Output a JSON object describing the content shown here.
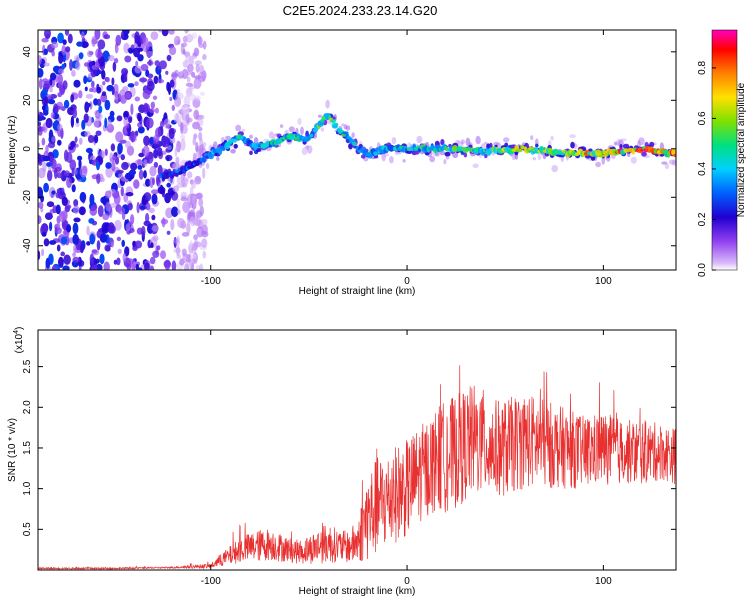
{
  "title": "C2E5.2024.233.23.14.G20",
  "chart_data": [
    {
      "type": "heatmap",
      "xlabel": "Height of straight line (km)",
      "ylabel": "Frequency (Hz)",
      "xlim": [
        -188,
        137
      ],
      "ylim": [
        -50,
        49
      ],
      "x_ticks": [
        -100,
        0,
        100
      ],
      "y_ticks": [
        -40,
        -20,
        0,
        20,
        40
      ],
      "colorbar": {
        "label": "Normalized spectral amplitude",
        "range": [
          0,
          0.95
        ],
        "ticks": [
          "0.0",
          "0.2",
          "0.4",
          "0.6",
          "0.8"
        ],
        "tick_values": [
          0,
          0.2,
          0.4,
          0.6,
          0.8
        ],
        "colors": [
          "#ffffff",
          "#b070f0",
          "#4000d0",
          "#0050ff",
          "#00d0ff",
          "#00e070",
          "#a0e000",
          "#ffe000",
          "#ff8000",
          "#ff0000",
          "#ff00c0"
        ]
      },
      "ridge": {
        "x": [
          -125,
          -115,
          -105,
          -95,
          -85,
          -78,
          -70,
          -60,
          -50,
          -45,
          -40,
          -35,
          -30,
          -25,
          -20,
          -10,
          0,
          20,
          40,
          60,
          80,
          100,
          120,
          137
        ],
        "y": [
          -12,
          -9,
          -5,
          0,
          5,
          1,
          2,
          5,
          4,
          10,
          14,
          8,
          5,
          0,
          -2,
          0,
          0,
          0,
          -1,
          0,
          -2,
          -2,
          0,
          -2
        ],
        "amplitude": [
          0.3,
          0.35,
          0.4,
          0.45,
          0.5,
          0.45,
          0.5,
          0.55,
          0.5,
          0.6,
          0.65,
          0.55,
          0.5,
          0.45,
          0.45,
          0.5,
          0.5,
          0.55,
          0.65,
          0.7,
          0.75,
          0.85,
          0.9,
          0.85
        ]
      },
      "noise_region_x": [
        -188,
        -118
      ]
    },
    {
      "type": "line",
      "xlabel": "Height of straight line (km)",
      "ylabel": "SNR (10 * v/v)",
      "y_scale_label": "(x10",
      "y_scale_exp": "4",
      "y_scale_close": ")",
      "xlim": [
        -188,
        137
      ],
      "ylim": [
        0,
        2.95
      ],
      "x_ticks": [
        -100,
        0,
        100
      ],
      "y_ticks": [
        "0.5",
        "1.0",
        "1.5",
        "2.0",
        "2.5"
      ],
      "y_tick_values": [
        0.5,
        1.0,
        1.5,
        2.0,
        2.5
      ],
      "line_color": "#e83030",
      "series": [
        {
          "x": [
            -188,
            -150,
            -120,
            -100,
            -95,
            -90,
            -85,
            -80,
            -75,
            -70,
            -65,
            -60,
            -55,
            -50,
            -45,
            -40,
            -35,
            -30,
            -25,
            -22,
            -20,
            -18,
            -15,
            -10,
            -5,
            0,
            5,
            10,
            15,
            20,
            25,
            30,
            35,
            40,
            45,
            50,
            55,
            60,
            70,
            80,
            90,
            100,
            110,
            120,
            130,
            137
          ],
          "y": [
            0.02,
            0.02,
            0.03,
            0.05,
            0.12,
            0.18,
            0.25,
            0.28,
            0.3,
            0.32,
            0.28,
            0.25,
            0.22,
            0.25,
            0.3,
            0.33,
            0.3,
            0.28,
            0.35,
            0.55,
            0.65,
            0.7,
            0.8,
            0.85,
            0.95,
            1.0,
            1.15,
            1.25,
            1.35,
            1.4,
            1.45,
            1.55,
            1.6,
            1.55,
            1.5,
            1.5,
            1.55,
            1.6,
            1.55,
            1.5,
            1.45,
            1.5,
            1.45,
            1.45,
            1.45,
            1.4
          ],
          "spread": [
            0.01,
            0.01,
            0.01,
            0.03,
            0.08,
            0.12,
            0.16,
            0.18,
            0.2,
            0.2,
            0.18,
            0.15,
            0.15,
            0.18,
            0.22,
            0.25,
            0.2,
            0.2,
            0.28,
            0.45,
            0.55,
            0.6,
            0.6,
            0.6,
            0.6,
            0.6,
            0.6,
            0.6,
            0.65,
            0.7,
            0.7,
            0.7,
            0.7,
            0.65,
            0.6,
            0.6,
            0.6,
            0.6,
            0.55,
            0.5,
            0.45,
            0.45,
            0.4,
            0.4,
            0.35,
            0.35
          ]
        }
      ]
    }
  ]
}
